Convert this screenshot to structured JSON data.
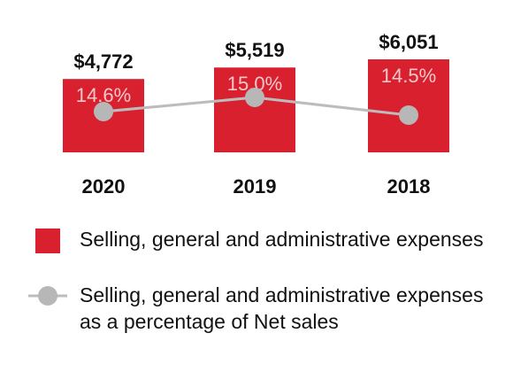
{
  "colors": {
    "bar": "#d9202f",
    "line": "#bcbcbc",
    "marker": "#b7b7b7",
    "value_text": "#111111",
    "pct_text": "#f3c8cc"
  },
  "chart_data": {
    "type": "bar",
    "categories": [
      "2020",
      "2019",
      "2018"
    ],
    "series": [
      {
        "name": "Selling, general and administrative expenses",
        "values": [
          4772,
          5519,
          6051
        ],
        "labels": [
          "$4,772",
          "$5,519",
          "$6,051"
        ]
      },
      {
        "name": "Selling, general and administrative expenses as a percentage of Net sales",
        "type": "line",
        "values": [
          14.6,
          15.0,
          14.5
        ],
        "labels": [
          "14.6%",
          "15.0%",
          "14.5%"
        ]
      }
    ],
    "ylim": [
      0,
      6051
    ],
    "grid": false,
    "legend_position": "bottom"
  },
  "legend": {
    "bar_label": "Selling, general and administrative expenses",
    "line_label": "Selling, general and administrative expenses as a percentage of Net sales"
  }
}
